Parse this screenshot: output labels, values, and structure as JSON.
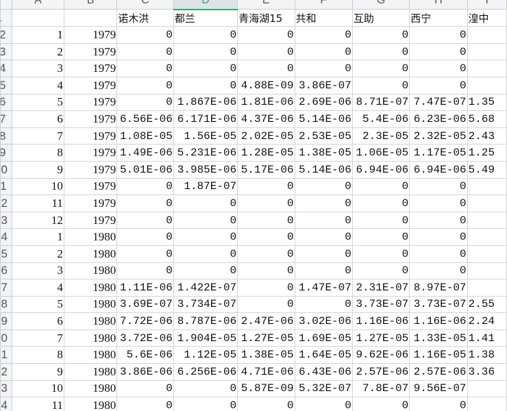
{
  "columns": [
    "A",
    "B",
    "C",
    "D",
    "E",
    "F",
    "G",
    "H",
    "I"
  ],
  "selected_column": "D",
  "header_names": [
    "",
    "",
    "诺木洪",
    "都兰",
    "青海湖15",
    "共和",
    "互助",
    "西宁",
    "湟中"
  ],
  "rows": [
    {
      "n": "2",
      "cells": [
        "1",
        "1979",
        "0",
        "0",
        "0",
        "0",
        "0",
        "0",
        ""
      ]
    },
    {
      "n": "3",
      "cells": [
        "2",
        "1979",
        "0",
        "0",
        "0",
        "0",
        "0",
        "0",
        ""
      ]
    },
    {
      "n": "4",
      "cells": [
        "3",
        "1979",
        "0",
        "0",
        "0",
        "0",
        "0",
        "0",
        ""
      ]
    },
    {
      "n": "5",
      "cells": [
        "4",
        "1979",
        "0",
        "0",
        "4.88E-09",
        "3.86E-07",
        "0",
        "0",
        ""
      ]
    },
    {
      "n": "6",
      "cells": [
        "5",
        "1979",
        "0",
        "1.867E-06",
        "1.81E-06",
        "2.69E-06",
        "8.71E-07",
        "7.47E-07",
        "1.35"
      ]
    },
    {
      "n": "7",
      "cells": [
        "6",
        "1979",
        "6.56E-06",
        "6.171E-06",
        "4.37E-06",
        "5.14E-06",
        "5.4E-06",
        "6.23E-06",
        "5.68"
      ]
    },
    {
      "n": "8",
      "cells": [
        "7",
        "1979",
        "1.08E-05",
        "1.56E-05",
        "2.02E-05",
        "2.53E-05",
        "2.3E-05",
        "2.32E-05",
        "2.43"
      ]
    },
    {
      "n": "9",
      "cells": [
        "8",
        "1979",
        "1.49E-06",
        "5.231E-06",
        "1.28E-05",
        "1.38E-05",
        "1.06E-05",
        "1.17E-05",
        "1.25"
      ]
    },
    {
      "n": "10",
      "cells": [
        "9",
        "1979",
        "5.01E-06",
        "3.985E-06",
        "5.17E-06",
        "5.14E-06",
        "6.94E-06",
        "6.94E-06",
        "5.49"
      ]
    },
    {
      "n": "11",
      "cells": [
        "10",
        "1979",
        "0",
        "1.87E-07",
        "0",
        "0",
        "0",
        "0",
        ""
      ]
    },
    {
      "n": "12",
      "cells": [
        "11",
        "1979",
        "0",
        "0",
        "0",
        "0",
        "0",
        "0",
        ""
      ]
    },
    {
      "n": "13",
      "cells": [
        "12",
        "1979",
        "0",
        "0",
        "0",
        "0",
        "0",
        "0",
        ""
      ]
    },
    {
      "n": "14",
      "cells": [
        "1",
        "1980",
        "0",
        "0",
        "0",
        "0",
        "0",
        "0",
        ""
      ]
    },
    {
      "n": "15",
      "cells": [
        "2",
        "1980",
        "0",
        "0",
        "0",
        "0",
        "0",
        "0",
        ""
      ]
    },
    {
      "n": "16",
      "cells": [
        "3",
        "1980",
        "0",
        "0",
        "0",
        "0",
        "0",
        "0",
        ""
      ]
    },
    {
      "n": "17",
      "cells": [
        "4",
        "1980",
        "1.11E-06",
        "1.422E-07",
        "0",
        "1.47E-07",
        "2.31E-07",
        "8.97E-07",
        ""
      ]
    },
    {
      "n": "18",
      "cells": [
        "5",
        "1980",
        "3.69E-07",
        "3.734E-07",
        "0",
        "0",
        "3.73E-07",
        "3.73E-07",
        "2.55"
      ]
    },
    {
      "n": "19",
      "cells": [
        "6",
        "1980",
        "7.72E-06",
        "8.787E-06",
        "2.47E-06",
        "3.02E-06",
        "1.16E-06",
        "1.16E-06",
        "2.24"
      ]
    },
    {
      "n": "20",
      "cells": [
        "7",
        "1980",
        "3.72E-06",
        "1.904E-05",
        "1.27E-05",
        "1.69E-05",
        "1.27E-05",
        "1.33E-05",
        "1.41"
      ]
    },
    {
      "n": "21",
      "cells": [
        "8",
        "1980",
        "5.6E-06",
        "1.12E-05",
        "1.38E-05",
        "1.64E-05",
        "9.62E-06",
        "1.16E-05",
        "1.38"
      ]
    },
    {
      "n": "22",
      "cells": [
        "9",
        "1980",
        "3.86E-06",
        "6.256E-06",
        "4.71E-06",
        "6.43E-06",
        "2.57E-06",
        "2.57E-06",
        "3.36"
      ]
    },
    {
      "n": "23",
      "cells": [
        "10",
        "1980",
        "0",
        "0",
        "5.87E-09",
        "5.32E-07",
        "7.8E-07",
        "9.56E-07",
        ""
      ]
    },
    {
      "n": "24",
      "cells": [
        "11",
        "1980",
        "0",
        "0",
        "0",
        "0",
        "0",
        "0",
        ""
      ]
    }
  ]
}
